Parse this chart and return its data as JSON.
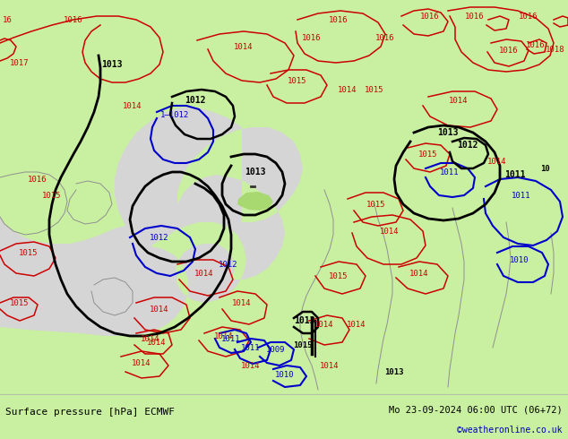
{
  "title_left": "Surface pressure [hPa] ECMWF",
  "title_right": "Mo 23-09-2024 06:00 UTC (06+72)",
  "credit": "©weatheronline.co.uk",
  "bg_color": "#c8f0a0",
  "sea_color": "#d8d8d8",
  "bottom_bg": "#c8f0a0",
  "text_color": "#000000",
  "credit_color": "#0000bb",
  "figsize": [
    6.34,
    4.9
  ],
  "dpi": 100
}
